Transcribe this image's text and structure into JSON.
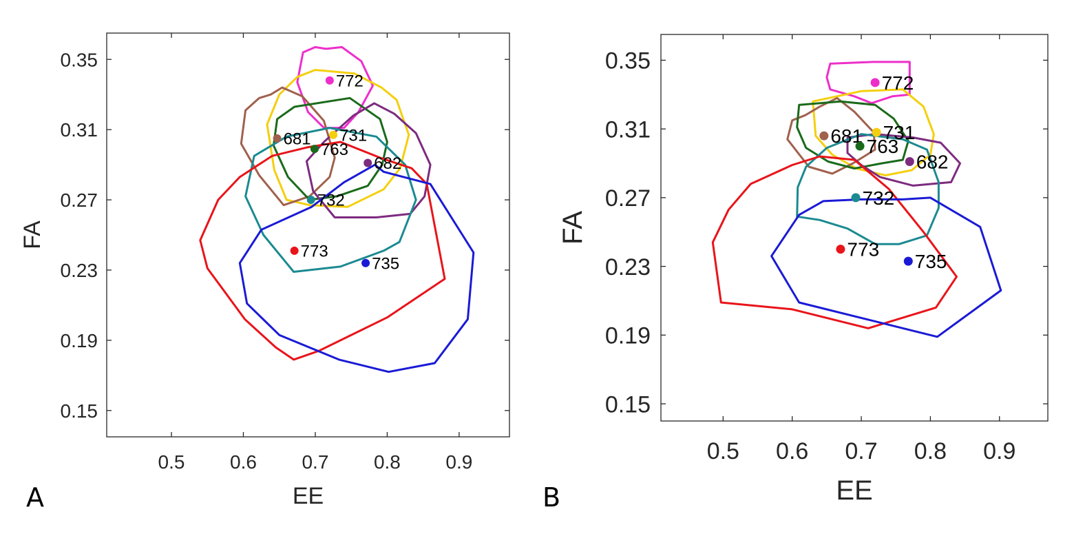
{
  "panels": [
    {
      "letter": "A"
    },
    {
      "letter": "B"
    }
  ],
  "chart_data": [
    {
      "type": "scatter",
      "panel_label": "A",
      "xlabel": "EE",
      "ylabel": "FA",
      "xlim": [
        0.41,
        0.97
      ],
      "ylim": [
        0.135,
        0.365
      ],
      "xticks": [
        0.5,
        0.6,
        0.7,
        0.8,
        0.9
      ],
      "yticks": [
        0.15,
        0.19,
        0.23,
        0.27,
        0.31,
        0.35
      ],
      "xtick_labels": [
        "0.5",
        "0.6",
        "0.7",
        "0.8",
        "0.9"
      ],
      "ytick_labels": [
        "0.15",
        "0.19",
        "0.23",
        "0.27",
        "0.31",
        "0.35"
      ],
      "series": [
        {
          "name": "772",
          "color": "#ee2ecb",
          "point": [
            0.72,
            0.338
          ],
          "contour": [
            [
              0.715,
              0.356
            ],
            [
              0.737,
              0.357
            ],
            [
              0.764,
              0.349
            ],
            [
              0.78,
              0.335
            ],
            [
              0.76,
              0.32
            ],
            [
              0.74,
              0.311
            ],
            [
              0.712,
              0.311
            ],
            [
              0.69,
              0.32
            ],
            [
              0.675,
              0.337
            ],
            [
              0.683,
              0.354
            ],
            [
              0.7,
              0.357
            ]
          ]
        },
        {
          "name": "731",
          "color": "#f4cf0f",
          "point": [
            0.725,
            0.307
          ],
          "contour": [
            [
              0.7,
              0.344
            ],
            [
              0.754,
              0.342
            ],
            [
              0.792,
              0.334
            ],
            [
              0.813,
              0.327
            ],
            [
              0.83,
              0.307
            ],
            [
              0.818,
              0.288
            ],
            [
              0.795,
              0.276
            ],
            [
              0.745,
              0.266
            ],
            [
              0.692,
              0.267
            ],
            [
              0.66,
              0.27
            ],
            [
              0.643,
              0.287
            ],
            [
              0.633,
              0.313
            ],
            [
              0.65,
              0.33
            ],
            [
              0.675,
              0.34
            ]
          ]
        },
        {
          "name": "681",
          "color": "#a0614d",
          "point": [
            0.647,
            0.305
          ],
          "contour": [
            [
              0.638,
              0.33
            ],
            [
              0.654,
              0.334
            ],
            [
              0.682,
              0.329
            ],
            [
              0.712,
              0.315
            ],
            [
              0.727,
              0.294
            ],
            [
              0.72,
              0.283
            ],
            [
              0.692,
              0.272
            ],
            [
              0.656,
              0.267
            ],
            [
              0.622,
              0.284
            ],
            [
              0.597,
              0.302
            ],
            [
              0.603,
              0.321
            ],
            [
              0.622,
              0.328
            ]
          ]
        },
        {
          "name": "763",
          "color": "#1a6a1a",
          "point": [
            0.699,
            0.299
          ],
          "contour": [
            [
              0.671,
              0.323
            ],
            [
              0.748,
              0.328
            ],
            [
              0.79,
              0.316
            ],
            [
              0.8,
              0.303
            ],
            [
              0.793,
              0.29
            ],
            [
              0.773,
              0.278
            ],
            [
              0.73,
              0.272
            ],
            [
              0.692,
              0.27
            ],
            [
              0.662,
              0.283
            ],
            [
              0.642,
              0.301
            ],
            [
              0.647,
              0.316
            ]
          ]
        },
        {
          "name": "682",
          "color": "#7d2b7f",
          "point": [
            0.773,
            0.291
          ],
          "contour": [
            [
              0.782,
              0.325
            ],
            [
              0.81,
              0.319
            ],
            [
              0.84,
              0.308
            ],
            [
              0.86,
              0.29
            ],
            [
              0.852,
              0.272
            ],
            [
              0.832,
              0.262
            ],
            [
              0.785,
              0.26
            ],
            [
              0.727,
              0.26
            ],
            [
              0.697,
              0.275
            ],
            [
              0.688,
              0.292
            ],
            [
              0.712,
              0.303
            ],
            [
              0.753,
              0.318
            ]
          ]
        },
        {
          "name": "732",
          "color": "#1b8a91",
          "point": [
            0.694,
            0.27
          ],
          "contour": [
            [
              0.72,
              0.311
            ],
            [
              0.785,
              0.306
            ],
            [
              0.825,
              0.29
            ],
            [
              0.84,
              0.27
            ],
            [
              0.817,
              0.246
            ],
            [
              0.795,
              0.241
            ],
            [
              0.735,
              0.232
            ],
            [
              0.67,
              0.229
            ],
            [
              0.628,
              0.25
            ],
            [
              0.603,
              0.272
            ],
            [
              0.615,
              0.295
            ],
            [
              0.66,
              0.306
            ]
          ]
        },
        {
          "name": "773",
          "color": "#e8141a",
          "point": [
            0.671,
            0.241
          ],
          "contour": [
            [
              0.69,
              0.3
            ],
            [
              0.735,
              0.303
            ],
            [
              0.79,
              0.294
            ],
            [
              0.834,
              0.288
            ],
            [
              0.855,
              0.279
            ],
            [
              0.88,
              0.225
            ],
            [
              0.8,
              0.203
            ],
            [
              0.705,
              0.184
            ],
            [
              0.67,
              0.179
            ],
            [
              0.645,
              0.186
            ],
            [
              0.602,
              0.202
            ],
            [
              0.568,
              0.221
            ],
            [
              0.55,
              0.231
            ],
            [
              0.54,
              0.247
            ],
            [
              0.565,
              0.27
            ],
            [
              0.595,
              0.283
            ],
            [
              0.64,
              0.295
            ]
          ]
        },
        {
          "name": "735",
          "color": "#1a1ad6",
          "point": [
            0.77,
            0.234
          ],
          "contour": [
            [
              0.595,
              0.234
            ],
            [
              0.625,
              0.253
            ],
            [
              0.695,
              0.266
            ],
            [
              0.74,
              0.28
            ],
            [
              0.783,
              0.29
            ],
            [
              0.795,
              0.286
            ],
            [
              0.86,
              0.279
            ],
            [
              0.92,
              0.24
            ],
            [
              0.912,
              0.202
            ],
            [
              0.866,
              0.177
            ],
            [
              0.802,
              0.172
            ],
            [
              0.733,
              0.179
            ],
            [
              0.65,
              0.193
            ],
            [
              0.605,
              0.211
            ]
          ]
        }
      ]
    },
    {
      "type": "scatter",
      "panel_label": "B",
      "xlabel": "EE",
      "ylabel": "FA",
      "xlim": [
        0.41,
        0.97
      ],
      "ylim": [
        0.14,
        0.365
      ],
      "xticks": [
        0.5,
        0.6,
        0.7,
        0.8,
        0.9
      ],
      "yticks": [
        0.15,
        0.19,
        0.23,
        0.27,
        0.31,
        0.35
      ],
      "xtick_labels": [
        "0.5",
        "0.6",
        "0.7",
        "0.8",
        "0.9"
      ],
      "ytick_labels": [
        "0.15",
        "0.19",
        "0.23",
        "0.27",
        "0.31",
        "0.35"
      ],
      "series": [
        {
          "name": "772",
          "color": "#ee2ecb",
          "point": [
            0.72,
            0.337
          ],
          "contour": [
            [
              0.655,
              0.348
            ],
            [
              0.717,
              0.349
            ],
            [
              0.77,
              0.349
            ],
            [
              0.77,
              0.33
            ],
            [
              0.745,
              0.329
            ],
            [
              0.715,
              0.325
            ],
            [
              0.69,
              0.329
            ],
            [
              0.655,
              0.333
            ],
            [
              0.65,
              0.34
            ]
          ]
        },
        {
          "name": "731",
          "color": "#f4cf0f",
          "point": [
            0.722,
            0.308
          ],
          "contour": [
            [
              0.63,
              0.326
            ],
            [
              0.7,
              0.332
            ],
            [
              0.76,
              0.333
            ],
            [
              0.79,
              0.323
            ],
            [
              0.805,
              0.307
            ],
            [
              0.8,
              0.295
            ],
            [
              0.773,
              0.286
            ],
            [
              0.735,
              0.283
            ],
            [
              0.693,
              0.287
            ],
            [
              0.658,
              0.295
            ],
            [
              0.634,
              0.306
            ]
          ]
        },
        {
          "name": "681",
          "color": "#a0614d",
          "point": [
            0.646,
            0.306
          ],
          "contour": [
            [
              0.619,
              0.318
            ],
            [
              0.64,
              0.323
            ],
            [
              0.665,
              0.328
            ],
            [
              0.69,
              0.32
            ],
            [
              0.718,
              0.308
            ],
            [
              0.72,
              0.298
            ],
            [
              0.688,
              0.29
            ],
            [
              0.658,
              0.284
            ],
            [
              0.624,
              0.288
            ],
            [
              0.593,
              0.304
            ],
            [
              0.6,
              0.315
            ]
          ]
        },
        {
          "name": "763",
          "color": "#1a6a1a",
          "point": [
            0.698,
            0.3
          ],
          "contour": [
            [
              0.61,
              0.324
            ],
            [
              0.67,
              0.326
            ],
            [
              0.72,
              0.324
            ],
            [
              0.747,
              0.316
            ],
            [
              0.768,
              0.303
            ],
            [
              0.76,
              0.292
            ],
            [
              0.73,
              0.29
            ],
            [
              0.69,
              0.287
            ],
            [
              0.652,
              0.291
            ],
            [
              0.62,
              0.299
            ],
            [
              0.607,
              0.311
            ]
          ]
        },
        {
          "name": "682",
          "color": "#7d2b7f",
          "point": [
            0.77,
            0.291
          ],
          "contour": [
            [
              0.68,
              0.305
            ],
            [
              0.72,
              0.307
            ],
            [
              0.775,
              0.305
            ],
            [
              0.815,
              0.302
            ],
            [
              0.843,
              0.29
            ],
            [
              0.83,
              0.279
            ],
            [
              0.775,
              0.277
            ],
            [
              0.727,
              0.282
            ],
            [
              0.7,
              0.289
            ],
            [
              0.68,
              0.296
            ]
          ]
        },
        {
          "name": "732",
          "color": "#1b8a91",
          "point": [
            0.692,
            0.27
          ],
          "contour": [
            [
              0.65,
              0.299
            ],
            [
              0.7,
              0.307
            ],
            [
              0.76,
              0.304
            ],
            [
              0.795,
              0.298
            ],
            [
              0.812,
              0.279
            ],
            [
              0.812,
              0.264
            ],
            [
              0.795,
              0.248
            ],
            [
              0.755,
              0.243
            ],
            [
              0.72,
              0.243
            ],
            [
              0.68,
              0.252
            ],
            [
              0.64,
              0.257
            ],
            [
              0.607,
              0.259
            ],
            [
              0.608,
              0.276
            ],
            [
              0.62,
              0.288
            ]
          ]
        },
        {
          "name": "773",
          "color": "#e8141a",
          "point": [
            0.67,
            0.24
          ],
          "contour": [
            [
              0.6,
              0.289
            ],
            [
              0.64,
              0.294
            ],
            [
              0.69,
              0.292
            ],
            [
              0.74,
              0.275
            ],
            [
              0.79,
              0.25
            ],
            [
              0.838,
              0.224
            ],
            [
              0.808,
              0.206
            ],
            [
              0.71,
              0.194
            ],
            [
              0.6,
              0.205
            ],
            [
              0.497,
              0.209
            ],
            [
              0.485,
              0.244
            ],
            [
              0.508,
              0.263
            ],
            [
              0.54,
              0.278
            ]
          ]
        },
        {
          "name": "735",
          "color": "#1a1ad6",
          "point": [
            0.768,
            0.233
          ],
          "contour": [
            [
              0.57,
              0.236
            ],
            [
              0.61,
              0.26
            ],
            [
              0.645,
              0.268
            ],
            [
              0.7,
              0.269
            ],
            [
              0.76,
              0.269
            ],
            [
              0.8,
              0.27
            ],
            [
              0.872,
              0.253
            ],
            [
              0.902,
              0.216
            ],
            [
              0.81,
              0.189
            ],
            [
              0.7,
              0.2
            ],
            [
              0.61,
              0.209
            ]
          ]
        }
      ]
    }
  ]
}
